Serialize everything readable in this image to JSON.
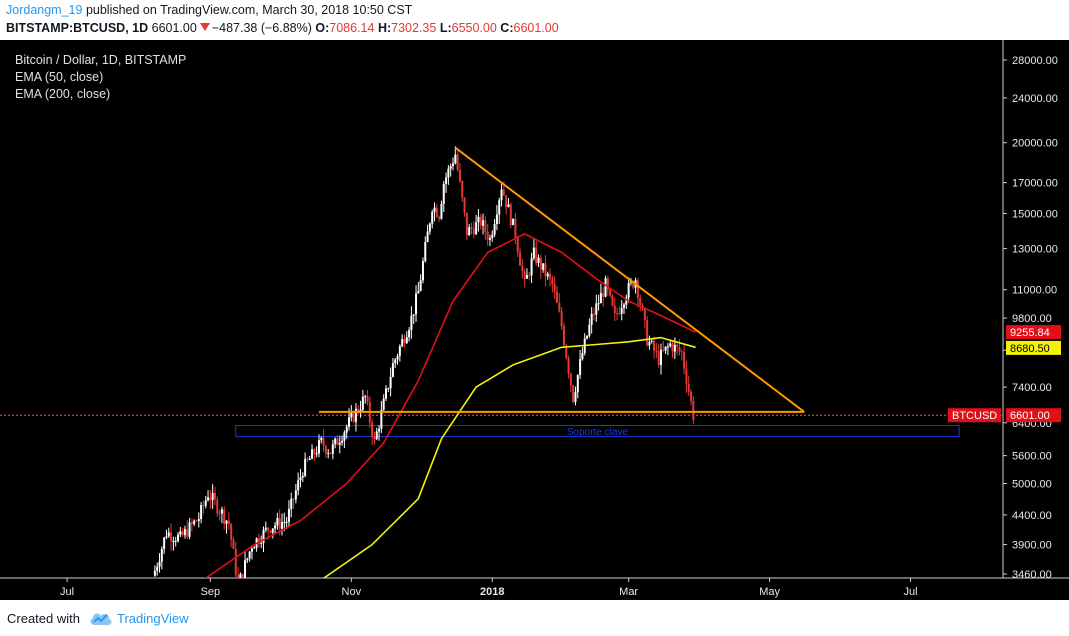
{
  "header": {
    "user": "Jordangm_19",
    "published": "published on TradingView.com, March 30, 2018 10:50 CST",
    "symbol": "BITSTAMP:BTCUSD, 1D",
    "last": "6601.00",
    "change": "−487.38 (−6.88%)",
    "o_label": "O:",
    "o_value": "7086.14",
    "h_label": "H:",
    "h_value": "7302.35",
    "l_label": "L:",
    "l_value": "6550.00",
    "c_label": "C:",
    "c_value": "6601.00"
  },
  "legend": {
    "title": "Bitcoin / Dollar, 1D, BITSTAMP",
    "ema50": "EMA (50, close)",
    "ema200": "EMA (200, close)"
  },
  "footer": {
    "created_with": "Created with",
    "brand": "TradingView"
  },
  "colors": {
    "background": "#000000",
    "candle_up": "#ffffff",
    "candle_down": "#e53935",
    "ema50": "#e0101a",
    "ema200": "#f2f20a",
    "trendline": "#ff9800",
    "support_box": "#1a3ad6",
    "price_line": "#ff5722"
  },
  "chart_data": {
    "type": "candlestick",
    "title": "Bitcoin / Dollar, 1D, BITSTAMP",
    "y_axis_ticks": [
      28000,
      24000,
      20000,
      17000,
      15000,
      13000,
      11000,
      9800,
      8600,
      7400,
      6400,
      5600,
      5000,
      4400,
      3900,
      3460
    ],
    "y_axis_labels": [
      "28000.00",
      "24000.00",
      "20000.00",
      "17000.00",
      "15000.00",
      "13000.00",
      "11000.00",
      "9800.00",
      "8600.00",
      "7400.00",
      "6400.00",
      "5600.00",
      "5000.00",
      "4400.00",
      "3900.00",
      "3460.00"
    ],
    "y_scale": "log",
    "ylim": [
      3400,
      32000
    ],
    "x_axis_labels": [
      {
        "label": "Jul",
        "date": "2017-07-01"
      },
      {
        "label": "Sep",
        "date": "2017-09-01"
      },
      {
        "label": "Nov",
        "date": "2017-11-01"
      },
      {
        "label": "2018",
        "date": "2018-01-01"
      },
      {
        "label": "Mar",
        "date": "2018-03-01"
      },
      {
        "label": "May",
        "date": "2018-05-01"
      },
      {
        "label": "Jul",
        "date": "2018-07-01"
      }
    ],
    "xlim": [
      "2017-06-05",
      "2018-08-10"
    ],
    "price_path": [
      [
        "2017-08-08",
        3400
      ],
      [
        "2017-08-14",
        4100
      ],
      [
        "2017-08-20",
        4000
      ],
      [
        "2017-08-28",
        4350
      ],
      [
        "2017-09-01",
        4800
      ],
      [
        "2017-09-06",
        4500
      ],
      [
        "2017-09-10",
        4250
      ],
      [
        "2017-09-14",
        3300
      ],
      [
        "2017-09-20",
        3900
      ],
      [
        "2017-09-28",
        4200
      ],
      [
        "2017-10-05",
        4300
      ],
      [
        "2017-10-12",
        5300
      ],
      [
        "2017-10-20",
        5900
      ],
      [
        "2017-10-24",
        5700
      ],
      [
        "2017-10-31",
        6300
      ],
      [
        "2017-11-08",
        7100
      ],
      [
        "2017-11-12",
        5900
      ],
      [
        "2017-11-20",
        8100
      ],
      [
        "2017-11-28",
        9800
      ],
      [
        "2017-12-01",
        10900
      ],
      [
        "2017-12-07",
        15500
      ],
      [
        "2017-12-10",
        15000
      ],
      [
        "2017-12-12",
        17000
      ],
      [
        "2017-12-17",
        19100
      ],
      [
        "2017-12-22",
        13900
      ],
      [
        "2017-12-28",
        14500
      ],
      [
        "2018-01-01",
        13500
      ],
      [
        "2018-01-06",
        16800
      ],
      [
        "2018-01-12",
        13800
      ],
      [
        "2018-01-16",
        11200
      ],
      [
        "2018-01-20",
        12700
      ],
      [
        "2018-01-28",
        11200
      ],
      [
        "2018-02-01",
        9500
      ],
      [
        "2018-02-06",
        7100
      ],
      [
        "2018-02-10",
        8500
      ],
      [
        "2018-02-14",
        9800
      ],
      [
        "2018-02-20",
        11200
      ],
      [
        "2018-02-24",
        9800
      ],
      [
        "2018-03-01",
        10900
      ],
      [
        "2018-03-05",
        11500
      ],
      [
        "2018-03-10",
        9000
      ],
      [
        "2018-03-15",
        8300
      ],
      [
        "2018-03-20",
        8800
      ],
      [
        "2018-03-25",
        8500
      ],
      [
        "2018-03-30",
        6601
      ]
    ],
    "series": [
      {
        "name": "EMA (50, close)",
        "type": "line",
        "points": [
          [
            "2017-08-30",
            3400
          ],
          [
            "2017-09-20",
            3900
          ],
          [
            "2017-10-10",
            4300
          ],
          [
            "2017-10-30",
            5000
          ],
          [
            "2017-11-15",
            5900
          ],
          [
            "2017-11-30",
            7600
          ],
          [
            "2017-12-15",
            10500
          ],
          [
            "2017-12-30",
            12800
          ],
          [
            "2018-01-15",
            13800
          ],
          [
            "2018-01-31",
            12800
          ],
          [
            "2018-02-15",
            11500
          ],
          [
            "2018-03-01",
            10500
          ],
          [
            "2018-03-15",
            9900
          ],
          [
            "2018-03-30",
            9255.84
          ]
        ]
      },
      {
        "name": "EMA (200, close)",
        "type": "line",
        "points": [
          [
            "2017-10-20",
            3400
          ],
          [
            "2017-11-10",
            3900
          ],
          [
            "2017-11-30",
            4700
          ],
          [
            "2017-12-10",
            6000
          ],
          [
            "2017-12-25",
            7400
          ],
          [
            "2018-01-10",
            8100
          ],
          [
            "2018-01-31",
            8700
          ],
          [
            "2018-02-15",
            8800
          ],
          [
            "2018-03-01",
            8900
          ],
          [
            "2018-03-15",
            9050
          ],
          [
            "2018-03-30",
            8700
          ]
        ]
      }
    ],
    "price_labels": [
      {
        "text": "9255.84",
        "value": 9255.84,
        "series": "EMA (50, close)"
      },
      {
        "text": "8680.50",
        "value": 8680.5,
        "series": "EMA (200, close)"
      },
      {
        "text": "BTCUSD",
        "value": 6601.0
      },
      {
        "text": "6601.00",
        "value": 6601.0
      }
    ],
    "annotations": [
      {
        "type": "trendline",
        "from": [
          "2017-12-16",
          19600
        ],
        "to": [
          "2018-05-16",
          6690
        ]
      },
      {
        "type": "horizontal_line",
        "from": [
          "2017-10-18",
          6690
        ],
        "to": [
          "2018-05-16",
          6690
        ]
      },
      {
        "type": "rectangle",
        "label": "Soporte clave",
        "x": [
          "2017-09-12",
          "2018-07-22"
        ],
        "y": [
          6050,
          6330
        ]
      },
      {
        "type": "horizontal_line",
        "value": 6601,
        "style": "dotted"
      }
    ]
  }
}
